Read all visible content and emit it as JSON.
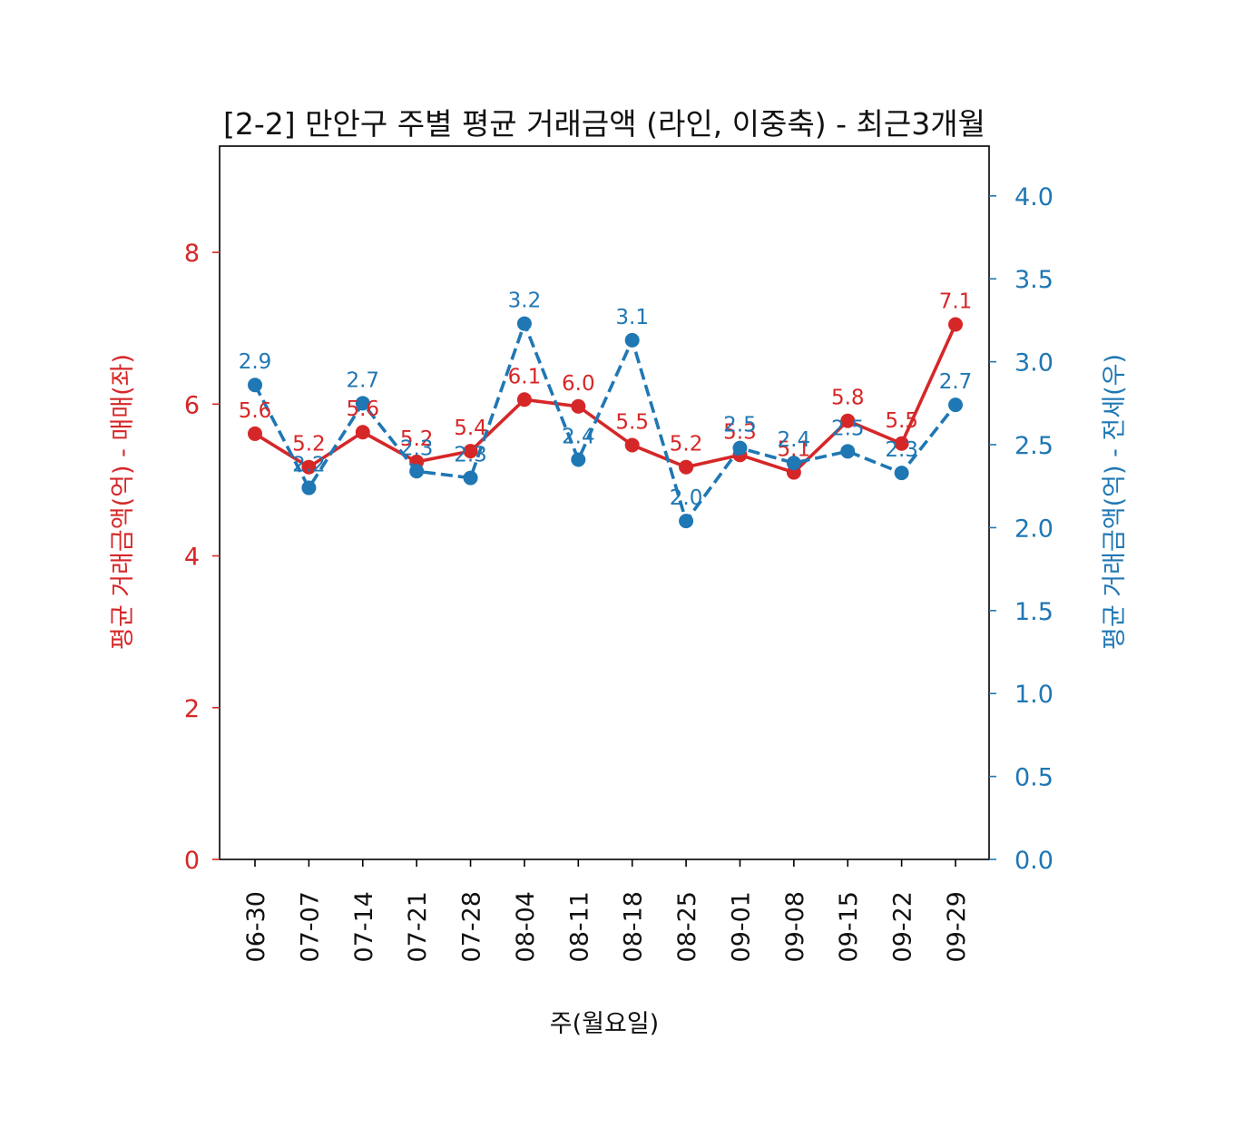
{
  "chart_data": {
    "type": "line",
    "title": "[2-2] 만안구 주별 평균 거래금액 (라인, 이중축) - 최근3개월",
    "xlabel": "주(월요일)",
    "ylabel_left": "평균 거래금액(억) - 매매(좌)",
    "ylabel_right": "평균 거래금액(억) - 전세(우)",
    "categories": [
      "06-30",
      "07-07",
      "07-14",
      "07-21",
      "07-28",
      "08-04",
      "08-11",
      "08-18",
      "08-25",
      "09-01",
      "09-08",
      "09-15",
      "09-22",
      "09-29"
    ],
    "y_left": {
      "ylim": [
        0,
        9.4
      ],
      "ticks": [
        0,
        2,
        4,
        6,
        8
      ],
      "tick_labels": [
        "0",
        "2",
        "4",
        "6",
        "8"
      ]
    },
    "y_right": {
      "ylim": [
        0,
        4.3
      ],
      "ticks": [
        0,
        0.5,
        1,
        1.5,
        2,
        2.5,
        3,
        3.5,
        4
      ],
      "tick_labels": [
        "0.0",
        "0.5",
        "1.0",
        "1.5",
        "2.0",
        "2.5",
        "3.0",
        "3.5",
        "4.0"
      ]
    },
    "series": [
      {
        "axis": "left",
        "style": "solid",
        "color": "#d62728",
        "values": [
          5.61,
          5.17,
          5.63,
          5.24,
          5.38,
          6.06,
          5.97,
          5.46,
          5.17,
          5.33,
          5.1,
          5.78,
          5.48,
          7.05
        ],
        "labels": [
          "5.6",
          "5.2",
          "5.6",
          "5.2",
          "5.4",
          "6.1",
          "6.0",
          "5.5",
          "5.2",
          "5.3",
          "5.1",
          "5.8",
          "5.5",
          "7.1"
        ]
      },
      {
        "axis": "right",
        "style": "dashed",
        "color": "#1f77b4",
        "values": [
          2.86,
          2.24,
          2.75,
          2.34,
          2.3,
          3.23,
          2.41,
          3.13,
          2.04,
          2.48,
          2.39,
          2.46,
          2.33,
          2.74
        ],
        "labels": [
          "2.9",
          "2.2",
          "2.7",
          "2.3",
          "2.3",
          "3.2",
          "2.4",
          "3.1",
          "2.0",
          "2.5",
          "2.4",
          "2.5",
          "2.3",
          "2.7"
        ]
      }
    ],
    "grid": false,
    "legend": "none"
  }
}
